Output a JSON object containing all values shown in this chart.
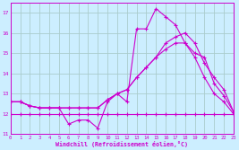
{
  "xlabel": "Windchill (Refroidissement éolien,°C)",
  "background_color": "#cceeff",
  "grid_color": "#aacccc",
  "line_color": "#cc00cc",
  "series": [
    {
      "x": [
        0,
        1,
        2,
        3,
        4,
        5,
        6,
        7,
        8,
        9,
        10,
        11,
        12,
        13,
        14,
        15,
        16,
        17,
        18,
        19,
        20,
        21,
        22,
        23
      ],
      "y": [
        12.6,
        12.6,
        12.4,
        12.3,
        12.3,
        12.3,
        11.5,
        11.7,
        11.7,
        11.3,
        12.6,
        13.0,
        12.6,
        16.2,
        16.2,
        17.2,
        16.8,
        16.4,
        15.5,
        14.8,
        13.8,
        13.0,
        12.6,
        12.0
      ]
    },
    {
      "x": [
        0,
        1,
        2,
        3,
        4,
        5,
        6,
        7,
        8,
        9,
        10,
        11,
        12,
        13,
        14,
        15,
        16,
        17,
        18,
        19,
        20,
        21,
        22,
        23
      ],
      "y": [
        12.6,
        12.6,
        12.4,
        12.3,
        12.3,
        12.3,
        12.3,
        12.3,
        12.3,
        12.3,
        12.7,
        13.0,
        13.2,
        13.8,
        14.3,
        14.8,
        15.2,
        15.5,
        15.5,
        15.0,
        14.8,
        13.5,
        12.9,
        12.1
      ]
    },
    {
      "x": [
        0,
        1,
        2,
        3,
        4,
        5,
        6,
        7,
        8,
        9,
        10,
        11,
        12,
        13,
        14,
        15,
        16,
        17,
        18,
        19,
        20,
        21,
        22,
        23
      ],
      "y": [
        12.6,
        12.6,
        12.4,
        12.3,
        12.3,
        12.3,
        12.3,
        12.3,
        12.3,
        12.3,
        12.7,
        13.0,
        13.2,
        13.8,
        14.3,
        14.8,
        15.5,
        15.8,
        16.0,
        15.5,
        14.5,
        13.8,
        13.2,
        12.1
      ]
    },
    {
      "x": [
        0,
        1,
        2,
        3,
        4,
        5,
        6,
        7,
        8,
        9,
        10,
        11,
        12,
        13,
        14,
        15,
        16,
        17,
        18,
        19,
        20,
        21,
        22,
        23
      ],
      "y": [
        12.0,
        12.0,
        12.0,
        12.0,
        12.0,
        12.0,
        12.0,
        12.0,
        12.0,
        12.0,
        12.0,
        12.0,
        12.0,
        12.0,
        12.0,
        12.0,
        12.0,
        12.0,
        12.0,
        12.0,
        12.0,
        12.0,
        12.0,
        12.0
      ]
    }
  ],
  "xlim": [
    0,
    23
  ],
  "ylim": [
    11.0,
    17.5
  ],
  "yticks": [
    11,
    12,
    13,
    14,
    15,
    16,
    17
  ],
  "xticks": [
    0,
    1,
    2,
    3,
    4,
    5,
    6,
    7,
    8,
    9,
    10,
    11,
    12,
    13,
    14,
    15,
    16,
    17,
    18,
    19,
    20,
    21,
    22,
    23
  ],
  "figwidth": 2.67,
  "figheight": 1.67,
  "dpi": 100
}
